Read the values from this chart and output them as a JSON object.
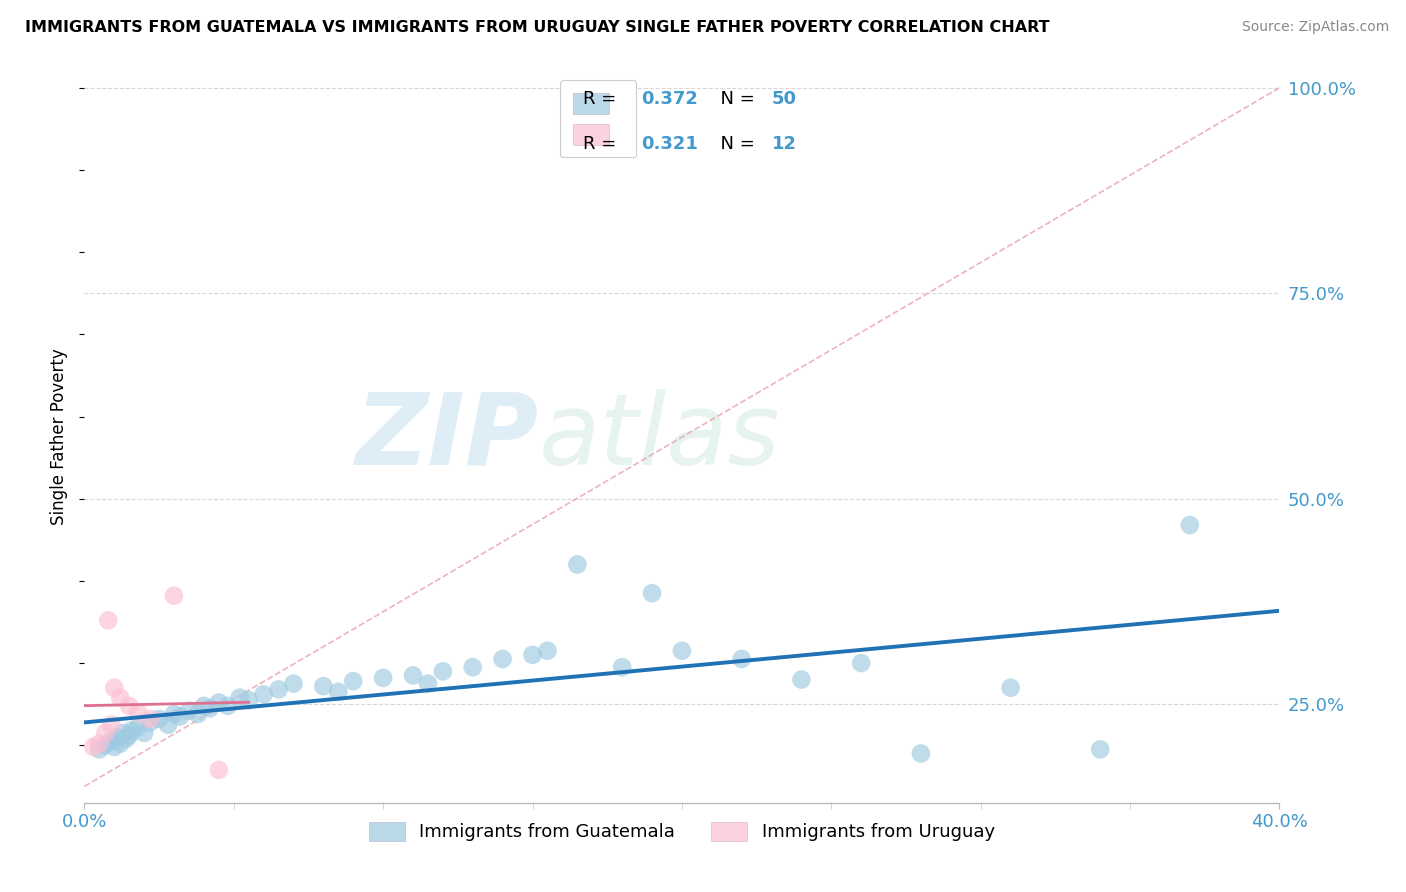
{
  "title": "IMMIGRANTS FROM GUATEMALA VS IMMIGRANTS FROM URUGUAY SINGLE FATHER POVERTY CORRELATION CHART",
  "source": "Source: ZipAtlas.com",
  "ylabel": "Single Father Poverty",
  "xlim": [
    0.0,
    0.4
  ],
  "ylim": [
    0.13,
    1.02
  ],
  "R_blue": 0.372,
  "N_blue": 50,
  "R_pink": 0.321,
  "N_pink": 12,
  "watermark_zip": "ZIP",
  "watermark_atlas": "atlas",
  "blue_scatter_color": "#9ecae1",
  "pink_scatter_color": "#fcbfd2",
  "blue_line_color": "#2171b5",
  "pink_line_color": "#e07090",
  "ref_line_color": "#e8a0b0",
  "grid_color": "#d8d8d8",
  "tick_label_color": "#4499cc",
  "legend_label_blue": "Immigrants from Guatemala",
  "legend_label_pink": "Immigrants from Uruguay",
  "blue_x": [
    0.005,
    0.007,
    0.009,
    0.01,
    0.011,
    0.012,
    0.013,
    0.014,
    0.015,
    0.016,
    0.018,
    0.02,
    0.022,
    0.025,
    0.028,
    0.03,
    0.032,
    0.035,
    0.038,
    0.04,
    0.042,
    0.045,
    0.048,
    0.052,
    0.055,
    0.06,
    0.065,
    0.07,
    0.08,
    0.085,
    0.09,
    0.1,
    0.11,
    0.115,
    0.12,
    0.13,
    0.14,
    0.15,
    0.155,
    0.165,
    0.18,
    0.19,
    0.2,
    0.22,
    0.24,
    0.26,
    0.28,
    0.31,
    0.34,
    0.37
  ],
  "blue_y": [
    0.195,
    0.2,
    0.205,
    0.198,
    0.21,
    0.202,
    0.215,
    0.208,
    0.212,
    0.218,
    0.222,
    0.215,
    0.228,
    0.232,
    0.225,
    0.238,
    0.235,
    0.242,
    0.238,
    0.248,
    0.245,
    0.252,
    0.248,
    0.258,
    0.255,
    0.262,
    0.268,
    0.275,
    0.272,
    0.265,
    0.278,
    0.282,
    0.285,
    0.275,
    0.29,
    0.295,
    0.305,
    0.31,
    0.315,
    0.42,
    0.295,
    0.385,
    0.315,
    0.305,
    0.28,
    0.3,
    0.19,
    0.27,
    0.195,
    0.468
  ],
  "pink_x": [
    0.003,
    0.005,
    0.007,
    0.008,
    0.009,
    0.01,
    0.012,
    0.015,
    0.018,
    0.022,
    0.03,
    0.045
  ],
  "pink_y": [
    0.198,
    0.202,
    0.215,
    0.352,
    0.225,
    0.27,
    0.258,
    0.248,
    0.24,
    0.232,
    0.382,
    0.17
  ]
}
